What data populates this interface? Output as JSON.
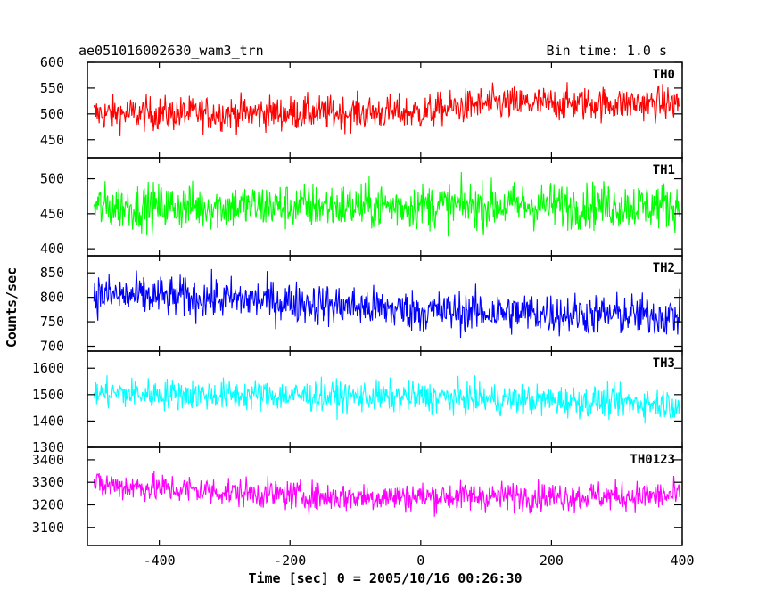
{
  "chart_data": {
    "type": "line",
    "title": "ae051016002630_wam3_trn",
    "bin_time_label": "Bin time: 1.0 s",
    "xlabel": "Time [sec] 0 = 2005/10/16 00:26:30",
    "ylabel": "Counts/sec",
    "xlim": [
      -510,
      400
    ],
    "xticks": [
      -400,
      -200,
      0,
      200,
      400
    ],
    "x_sampling": {
      "start": -500,
      "end": 396,
      "step": 1
    },
    "series": [
      {
        "name": "TH0",
        "color": "#ff0000",
        "ylim": [
          415,
          600
        ],
        "yticks": [
          450,
          500,
          550,
          600
        ],
        "baseline": [
          [
            -500,
            500
          ],
          [
            0,
            503
          ],
          [
            100,
            520
          ],
          [
            400,
            520
          ]
        ],
        "noise": 28
      },
      {
        "name": "TH1",
        "color": "#00ff00",
        "ylim": [
          390,
          530
        ],
        "yticks": [
          400,
          450,
          500
        ],
        "baseline": [
          [
            -500,
            460
          ],
          [
            400,
            462
          ]
        ],
        "noise": 28
      },
      {
        "name": "TH2",
        "color": "#0000ff",
        "ylim": [
          690,
          885
        ],
        "yticks": [
          700,
          750,
          800,
          850
        ],
        "baseline": [
          [
            -500,
            805
          ],
          [
            -250,
            795
          ],
          [
            0,
            772
          ],
          [
            400,
            762
          ]
        ],
        "noise": 36
      },
      {
        "name": "TH3",
        "color": "#00ffff",
        "ylim": [
          1300,
          1665
        ],
        "yticks": [
          1300,
          1400,
          1500,
          1600
        ],
        "baseline": [
          [
            -500,
            1505
          ],
          [
            0,
            1490
          ],
          [
            400,
            1465
          ]
        ],
        "noise": 50
      },
      {
        "name": "TH0123",
        "color": "#ff00ff",
        "ylim": [
          3020,
          3455
        ],
        "yticks": [
          3100,
          3200,
          3300,
          3400
        ],
        "baseline": [
          [
            -500,
            3290
          ],
          [
            -150,
            3235
          ],
          [
            400,
            3240
          ]
        ],
        "noise": 55
      }
    ]
  }
}
